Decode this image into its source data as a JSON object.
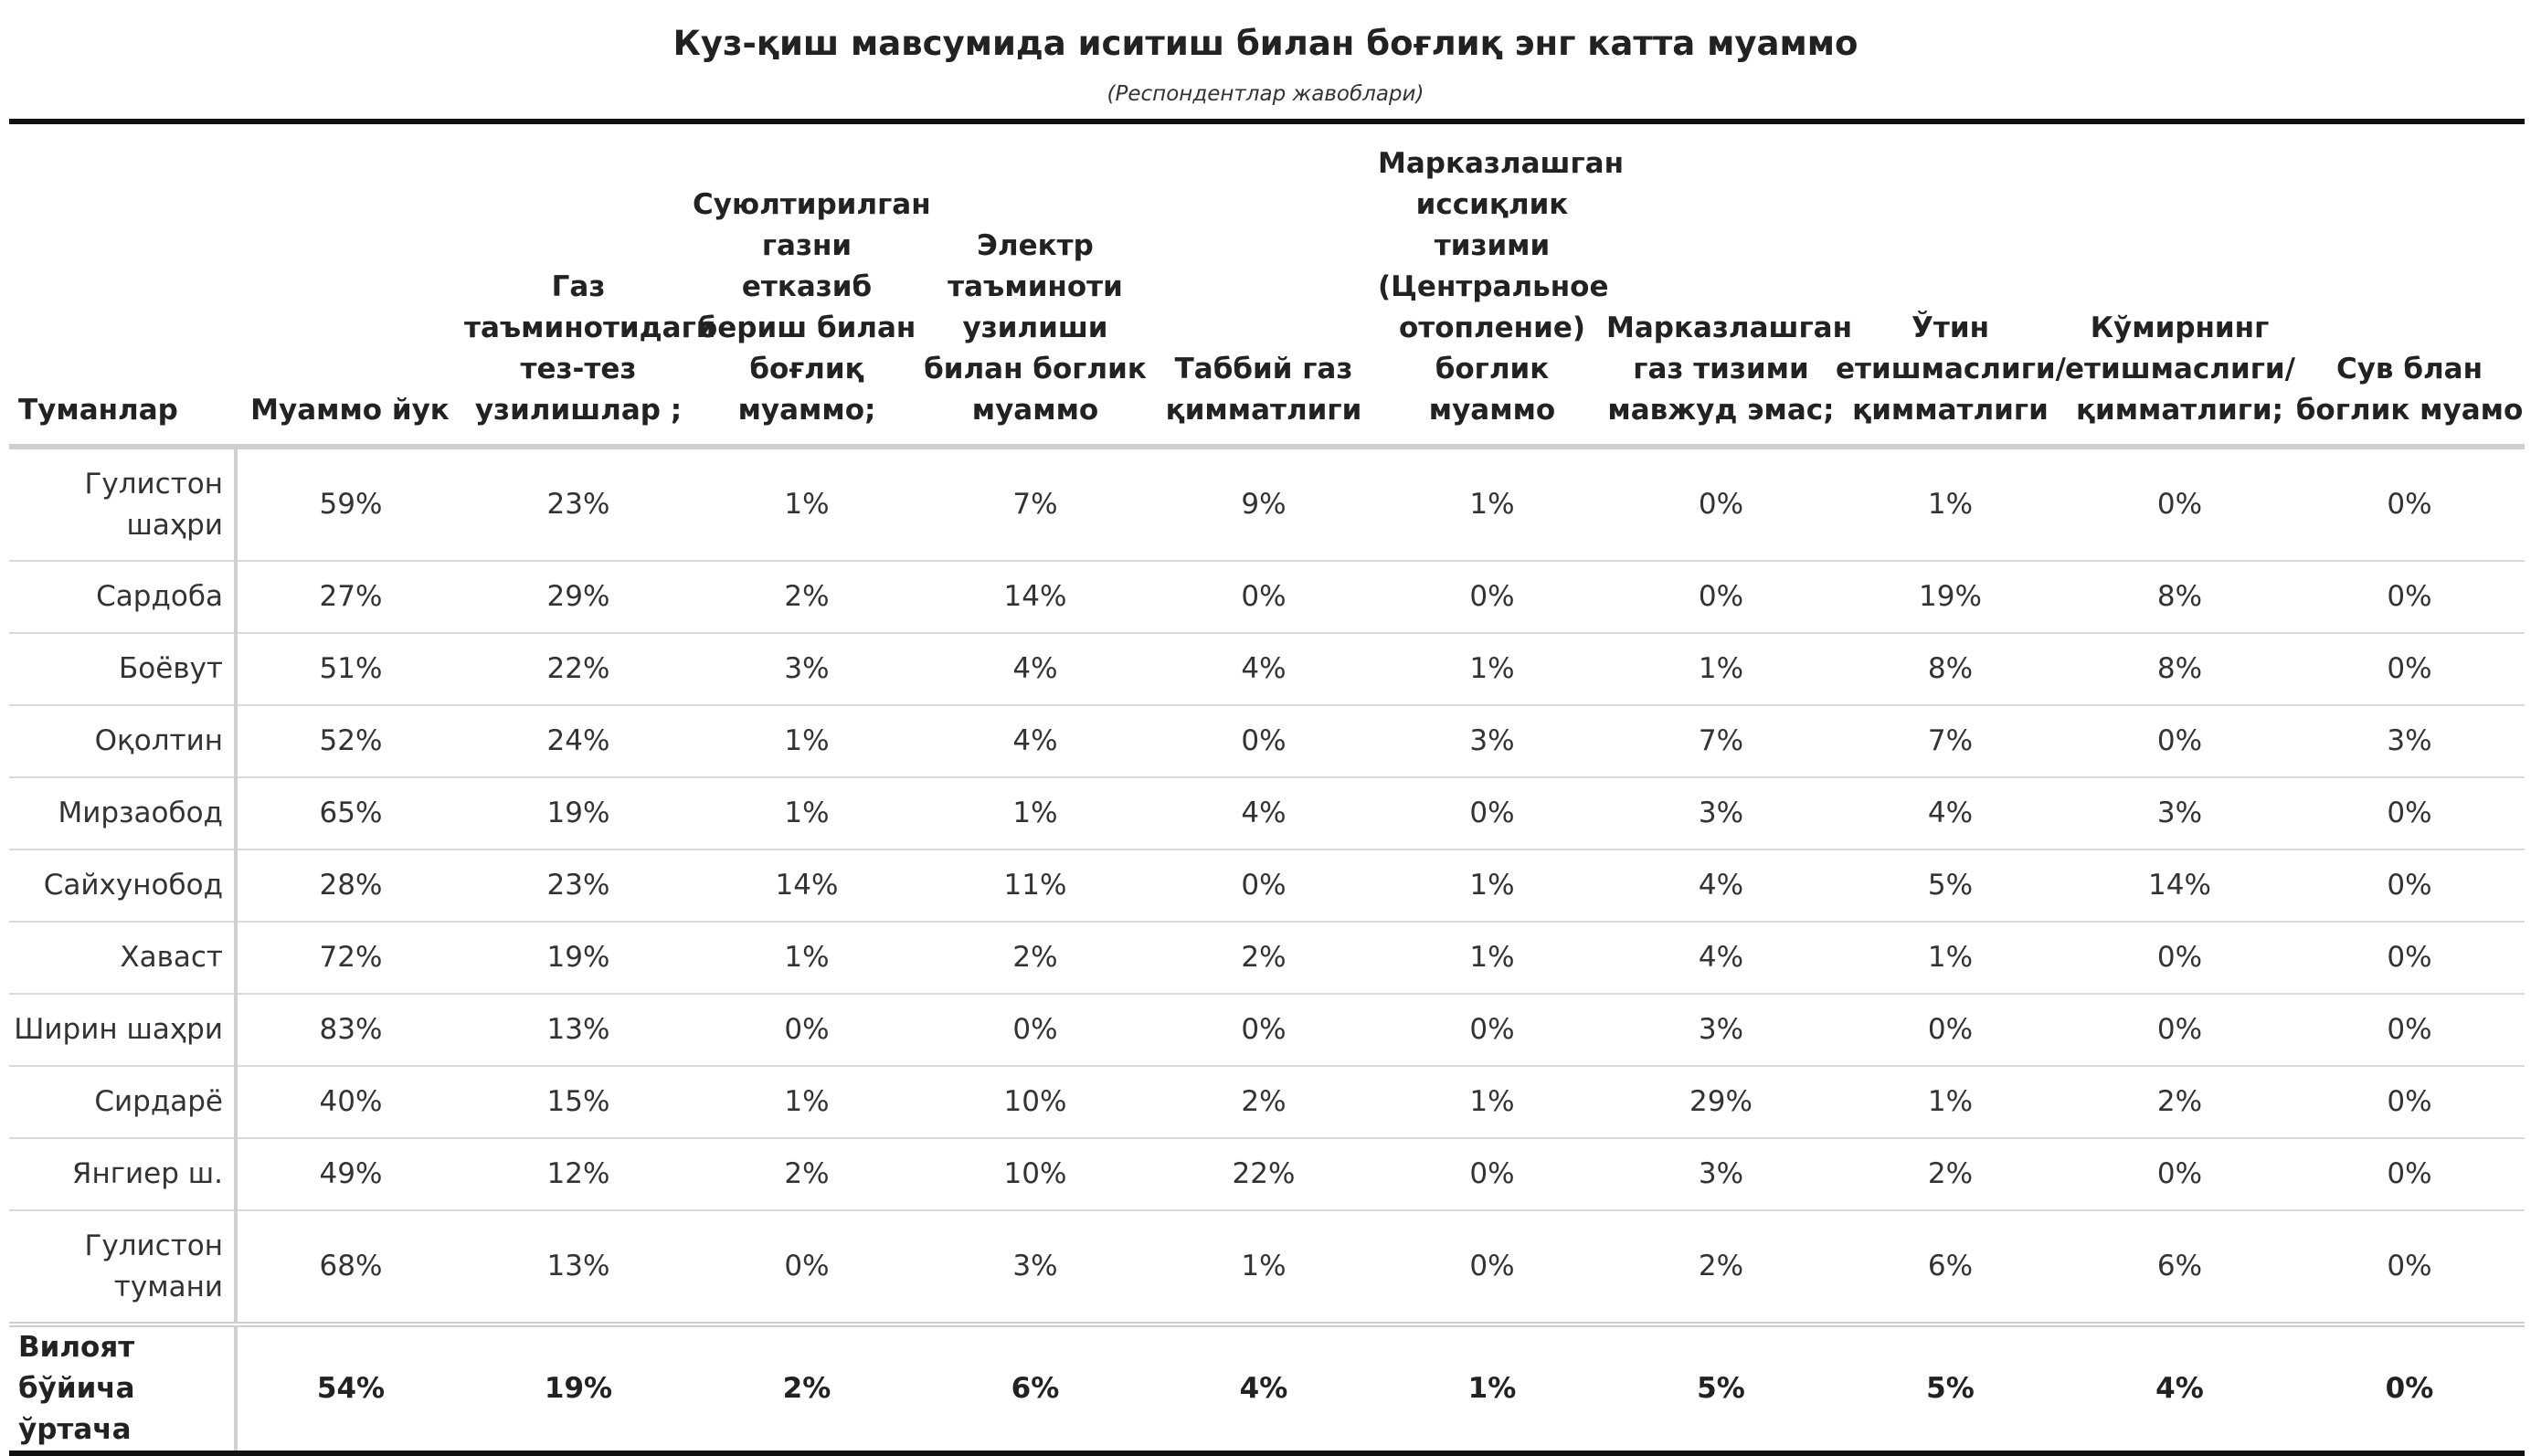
{
  "chart_data": {
    "type": "table",
    "title": "Куз-қиш мавсумида иситиш билан боғлиқ энг катта муаммо",
    "subtitle": "(Респондентлар жавоблари)",
    "row_header": "Туманлар",
    "columns": [
      "Муаммо йук",
      "Газ таъминотидаги тез-тез узилишлар ;",
      "Суюлтирилган газни етказиб бериш билан боғлиқ муаммо;",
      "Электр таъминоти узилиши билан боглик муаммо",
      "Таббий газ қимматлиги",
      "Марказлашган иссиқлик тизими (Центральное отопление) боглик муаммо",
      "Марказлашган газ тизими мавжуд эмас;",
      "Ўтин етишмаслиги/ қимматлиги",
      "Кўмирнинг етишмаслиги/ қимматлиги;",
      "Сув блан боглик муамо"
    ],
    "rows": [
      {
        "name": "Гулистон шаҳри",
        "values": [
          "59%",
          "23%",
          "1%",
          "7%",
          "9%",
          "1%",
          "0%",
          "1%",
          "0%",
          "0%"
        ]
      },
      {
        "name": "Сардоба",
        "values": [
          "27%",
          "29%",
          "2%",
          "14%",
          "0%",
          "0%",
          "0%",
          "19%",
          "8%",
          "0%"
        ]
      },
      {
        "name": "Боёвут",
        "values": [
          "51%",
          "22%",
          "3%",
          "4%",
          "4%",
          "1%",
          "1%",
          "8%",
          "8%",
          "0%"
        ]
      },
      {
        "name": "Оқолтин",
        "values": [
          "52%",
          "24%",
          "1%",
          "4%",
          "0%",
          "3%",
          "7%",
          "7%",
          "0%",
          "3%"
        ]
      },
      {
        "name": "Мирзаобод",
        "values": [
          "65%",
          "19%",
          "1%",
          "1%",
          "4%",
          "0%",
          "3%",
          "4%",
          "3%",
          "0%"
        ]
      },
      {
        "name": "Сайхунобод",
        "values": [
          "28%",
          "23%",
          "14%",
          "11%",
          "0%",
          "1%",
          "4%",
          "5%",
          "14%",
          "0%"
        ]
      },
      {
        "name": "Хаваст",
        "values": [
          "72%",
          "19%",
          "1%",
          "2%",
          "2%",
          "1%",
          "4%",
          "1%",
          "0%",
          "0%"
        ]
      },
      {
        "name": "Ширин шаҳри",
        "values": [
          "83%",
          "13%",
          "0%",
          "0%",
          "0%",
          "0%",
          "3%",
          "0%",
          "0%",
          "0%"
        ]
      },
      {
        "name": "Сирдарё",
        "values": [
          "40%",
          "15%",
          "1%",
          "10%",
          "2%",
          "1%",
          "29%",
          "1%",
          "2%",
          "0%"
        ]
      },
      {
        "name": "Янгиер ш.",
        "values": [
          "49%",
          "12%",
          "2%",
          "10%",
          "22%",
          "0%",
          "3%",
          "2%",
          "0%",
          "0%"
        ]
      },
      {
        "name": "Гулистон тумани",
        "values": [
          "68%",
          "13%",
          "0%",
          "3%",
          "1%",
          "0%",
          "2%",
          "6%",
          "6%",
          "0%"
        ]
      }
    ],
    "total": {
      "name": "Вилоят бўйича ўртача",
      "values": [
        "54%",
        "19%",
        "2%",
        "6%",
        "4%",
        "1%",
        "5%",
        "5%",
        "4%",
        "0%"
      ]
    }
  }
}
